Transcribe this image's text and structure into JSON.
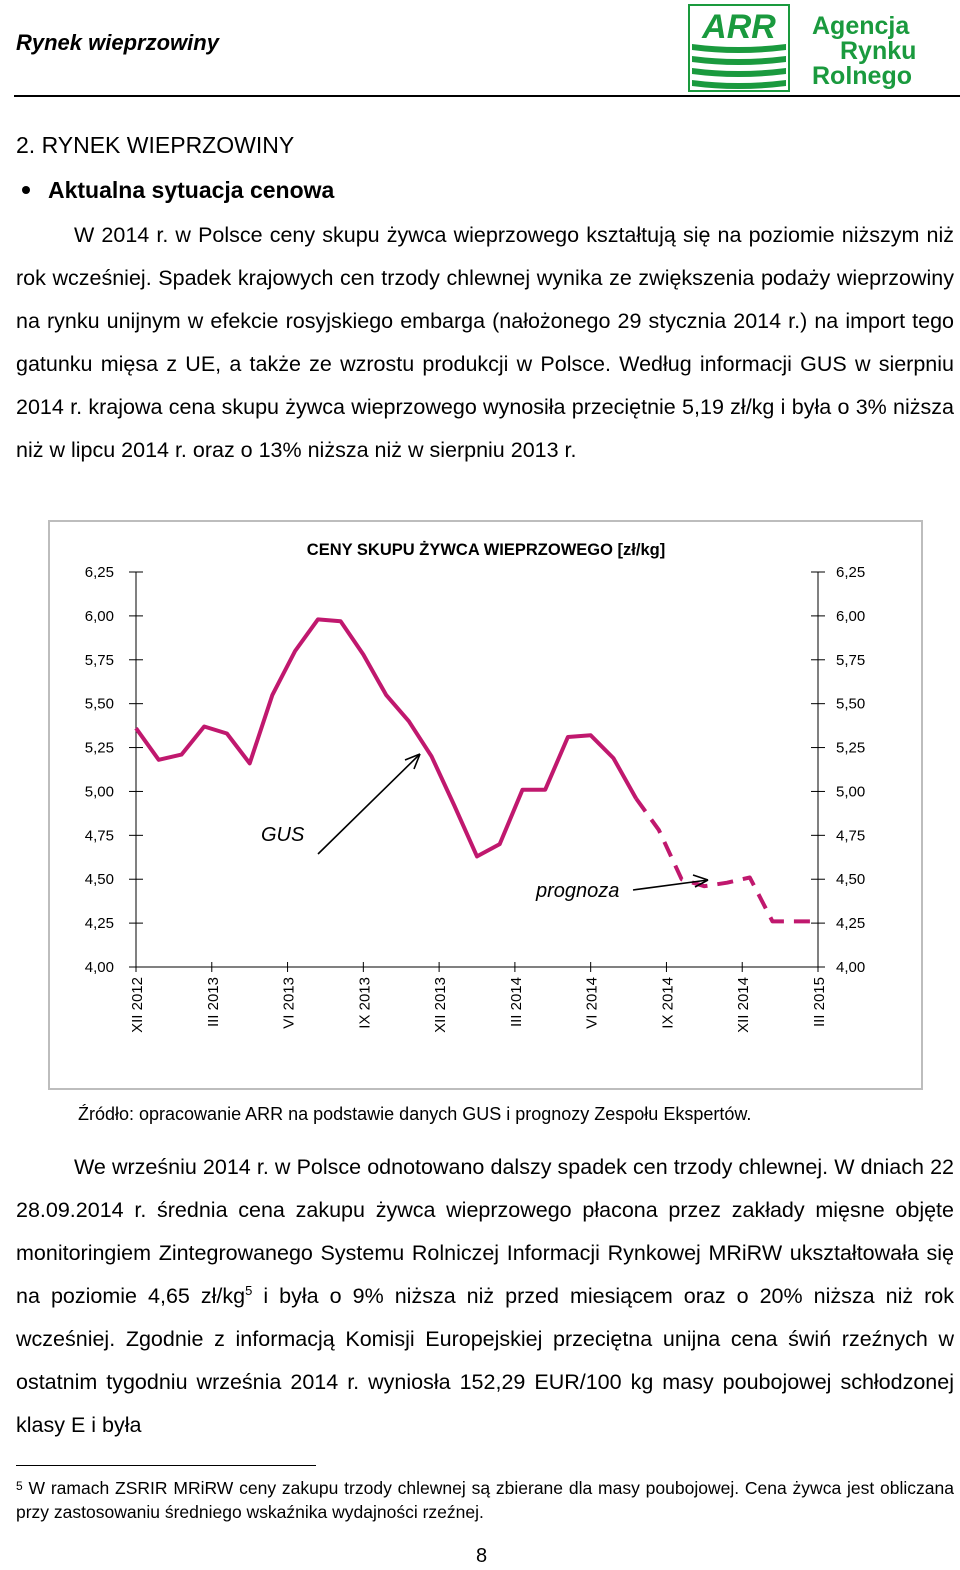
{
  "header": {
    "title": "Rynek wieprzowiny",
    "logo_abbr": "ARR",
    "logo_line1": "Agencja",
    "logo_line2": "Rynku",
    "logo_line3": "Rolnego",
    "logo_color": "#1a9a3e"
  },
  "section": {
    "title": "2. RYNEK WIEPRZOWINY",
    "bullet": "Aktualna sytuacja cenowa"
  },
  "paragraph1": "W 2014 r. w Polsce ceny skupu żywca wieprzowego kształtują się na poziomie niższym niż rok wcześniej. Spadek krajowych cen trzody chlewnej wynika ze zwiększenia podaży wieprzowiny na rynku unijnym w efekcie rosyjskiego embarga (nałożonego 29 stycznia 2014 r.) na import tego gatunku mięsa z UE, a także ze wzrostu produkcji w Polsce. Według informacji GUS w sierpniu 2014 r. krajowa cena skupu żywca wieprzowego wynosiła przeciętnie 5,19 zł/kg i była o 3% niższa niż w lipcu 2014 r. oraz o 13% niższa niż w sierpniu 2013 r.",
  "chart_data": {
    "type": "line",
    "title": "CENY SKUPU ŻYWCA WIEPRZOWEGO [zł/kg]",
    "ylim": [
      4.0,
      6.25
    ],
    "yticks": [
      "6,25",
      "6,00",
      "5,75",
      "5,50",
      "5,25",
      "5,00",
      "4,75",
      "4,50",
      "4,25",
      "4,00"
    ],
    "x_tick_labels": [
      "XII 2012",
      "III 2013",
      "VI 2013",
      "IX 2013",
      "XII 2013",
      "III 2014",
      "VI 2014",
      "IX 2014",
      "XII 2014",
      "III 2015"
    ],
    "line_color": "#c0186e",
    "series": [
      {
        "name": "GUS",
        "style": "solid",
        "values": [
          5.36,
          5.18,
          5.21,
          5.37,
          5.33,
          5.16,
          5.55,
          5.8,
          5.98,
          5.97,
          5.78,
          5.55,
          5.4,
          5.2,
          4.92,
          4.63,
          4.7,
          5.01,
          5.01,
          5.31,
          5.32,
          5.19,
          4.96
        ]
      },
      {
        "name": "prognoza",
        "style": "dashed",
        "values": [
          null,
          null,
          null,
          null,
          null,
          null,
          null,
          null,
          null,
          null,
          null,
          null,
          null,
          null,
          null,
          null,
          null,
          null,
          null,
          null,
          null,
          null,
          4.96,
          4.78,
          4.5,
          4.46,
          4.48,
          4.51,
          4.26,
          4.26,
          4.26
        ]
      }
    ],
    "annotations": [
      "GUS",
      "prognoza"
    ],
    "grid": false
  },
  "source": "Źródło: opracowanie ARR na podstawie danych GUS i prognozy Zespołu Ekspertów.",
  "paragraph2_a": "We wrześniu 2014 r. w Polsce odnotowano dalszy spadek cen trzody chlewnej. W dniach 22 28.09.2014 r. średnia cena zakupu żywca wieprzowego płacona przez zakłady mięsne objęte monitoringiem Zintegrowanego Systemu Rolniczej Informacji Rynkowej MRiRW ukształtowała się na poziomie 4,65 zł/kg",
  "paragraph2_sup": "5",
  "paragraph2_b": " i była o 9% niższa niż przed miesiącem oraz o 20% niższa niż rok wcześniej. Zgodnie z informacją Komisji Europejskiej przeciętna unijna cena świń rzeźnych w ostatnim tygodniu września 2014 r. wyniosła 152,29 EUR/100 kg masy poubojowej schłodzonej klasy E i była",
  "footnote": {
    "number": "5",
    "text": " W ramach ZSRIR MRiRW ceny zakupu trzody chlewnej są zbierane dla masy poubojowej. Cena żywca jest obliczana przy zastosowaniu średniego wskaźnika wydajności rzeźnej."
  },
  "page_number": "8"
}
